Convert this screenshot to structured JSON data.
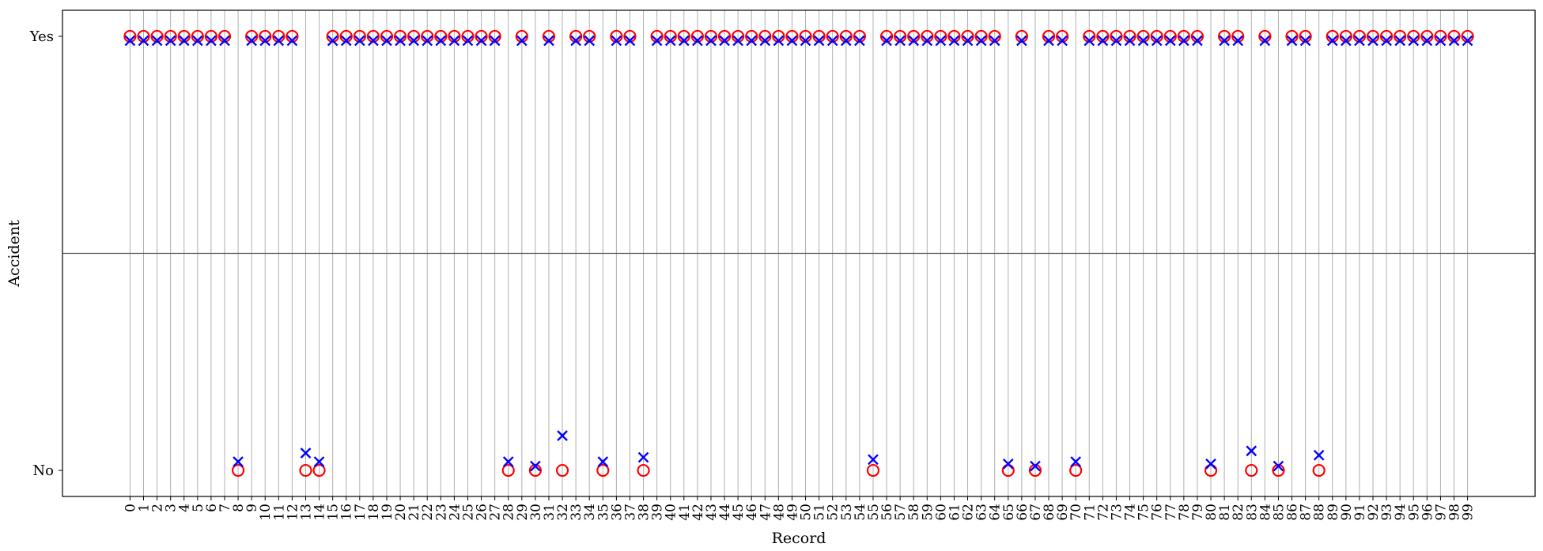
{
  "chart_data": {
    "type": "scatter",
    "title": "",
    "xlabel": "Record",
    "ylabel": "Accident",
    "x": [
      0,
      1,
      2,
      3,
      4,
      5,
      6,
      7,
      8,
      9,
      10,
      11,
      12,
      13,
      14,
      15,
      16,
      17,
      18,
      19,
      20,
      21,
      22,
      23,
      24,
      25,
      26,
      27,
      28,
      29,
      30,
      31,
      32,
      33,
      34,
      35,
      36,
      37,
      38,
      39,
      40,
      41,
      42,
      43,
      44,
      45,
      46,
      47,
      48,
      49,
      50,
      51,
      52,
      53,
      54,
      55,
      56,
      57,
      58,
      59,
      60,
      61,
      62,
      63,
      64,
      65,
      66,
      67,
      68,
      69,
      70,
      71,
      72,
      73,
      74,
      75,
      76,
      77,
      78,
      79,
      80,
      81,
      82,
      83,
      84,
      85,
      86,
      87,
      88,
      89,
      90,
      91,
      92,
      93,
      94,
      95,
      96,
      97,
      98,
      99
    ],
    "y_ticks": [
      "No",
      "Yes"
    ],
    "xlim": [
      -5,
      104
    ],
    "ylim": [
      -0.06,
      1.06
    ],
    "grid": "x",
    "series": [
      {
        "marker": "circle",
        "color": "#ff0000",
        "values": [
          1,
          1,
          1,
          1,
          1,
          1,
          1,
          1,
          0,
          1,
          1,
          1,
          1,
          0,
          0,
          1,
          1,
          1,
          1,
          1,
          1,
          1,
          1,
          1,
          1,
          1,
          1,
          1,
          0,
          1,
          0,
          1,
          0,
          1,
          1,
          0,
          1,
          1,
          0,
          1,
          1,
          1,
          1,
          1,
          1,
          1,
          1,
          1,
          1,
          1,
          1,
          1,
          1,
          1,
          1,
          0,
          1,
          1,
          1,
          1,
          1,
          1,
          1,
          1,
          1,
          0,
          1,
          0,
          1,
          1,
          0,
          1,
          1,
          1,
          1,
          1,
          1,
          1,
          1,
          1,
          0,
          1,
          1,
          0,
          1,
          0,
          1,
          1,
          0,
          1,
          1,
          1,
          1,
          1,
          1,
          1,
          1,
          1,
          1,
          1
        ]
      },
      {
        "marker": "x",
        "color": "#0000ff",
        "values": [
          0.99,
          0.99,
          0.99,
          0.99,
          0.99,
          0.99,
          0.99,
          0.99,
          0.02,
          0.99,
          0.99,
          0.99,
          0.99,
          0.04,
          0.02,
          0.99,
          0.99,
          0.99,
          0.99,
          0.99,
          0.99,
          0.99,
          0.99,
          0.99,
          0.99,
          0.99,
          0.99,
          0.99,
          0.02,
          0.99,
          0.01,
          0.99,
          0.08,
          0.99,
          0.99,
          0.02,
          0.99,
          0.99,
          0.03,
          0.99,
          0.99,
          0.99,
          0.99,
          0.99,
          0.99,
          0.99,
          0.99,
          0.99,
          0.99,
          0.99,
          0.99,
          0.99,
          0.99,
          0.99,
          0.99,
          0.025,
          0.99,
          0.99,
          0.99,
          0.99,
          0.99,
          0.99,
          0.99,
          0.99,
          0.99,
          0.015,
          0.99,
          0.01,
          0.99,
          0.99,
          0.02,
          0.99,
          0.99,
          0.99,
          0.99,
          0.99,
          0.99,
          0.99,
          0.99,
          0.99,
          0.015,
          0.99,
          0.99,
          0.045,
          0.99,
          0.01,
          0.99,
          0.99,
          0.035,
          0.99,
          0.99,
          0.99,
          0.99,
          0.99,
          0.99,
          0.99,
          0.99,
          0.99,
          0.99,
          0.99
        ]
      }
    ]
  }
}
